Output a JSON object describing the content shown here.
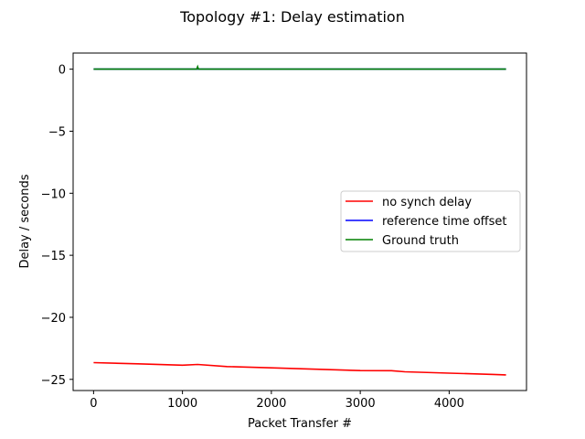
{
  "chart_data": {
    "type": "line",
    "title": "Topology #1: Delay estimation",
    "xlabel": "Packet Transfer #",
    "ylabel": "Delay / seconds",
    "xlim": [
      -230,
      4870
    ],
    "ylim": [
      -25.9,
      1.3
    ],
    "xticks": [
      0,
      1000,
      2000,
      3000,
      4000
    ],
    "yticks": [
      0,
      -5,
      -10,
      -15,
      -20,
      -25
    ],
    "xtick_labels": [
      "0",
      "1000",
      "2000",
      "3000",
      "4000"
    ],
    "ytick_labels": [
      "0",
      "−5",
      "−10",
      "−15",
      "−20",
      "−25"
    ],
    "grid": false,
    "legend_position": "center-right",
    "series": [
      {
        "name": "no synch delay",
        "color": "#ff0000",
        "x": [
          0,
          500,
          1000,
          1170,
          1500,
          2000,
          2500,
          3000,
          3350,
          3500,
          4000,
          4500,
          4640
        ],
        "y": [
          -23.65,
          -23.75,
          -23.86,
          -23.8,
          -23.97,
          -24.07,
          -24.18,
          -24.29,
          -24.3,
          -24.39,
          -24.5,
          -24.6,
          -24.64
        ]
      },
      {
        "name": "reference time offset",
        "color": "#0000ff",
        "x": [
          0,
          4640
        ],
        "y": [
          0.0,
          0.0
        ]
      },
      {
        "name": "Ground truth",
        "color": "#008000",
        "x": [
          0,
          500,
          1000,
          1160,
          1170,
          1180,
          1500,
          2000,
          2500,
          3000,
          3500,
          4000,
          4640
        ],
        "y": [
          0.0,
          0.0,
          0.0,
          0.0,
          0.2,
          0.0,
          0.0,
          0.0,
          0.0,
          0.0,
          0.0,
          0.0,
          0.0
        ]
      }
    ]
  }
}
